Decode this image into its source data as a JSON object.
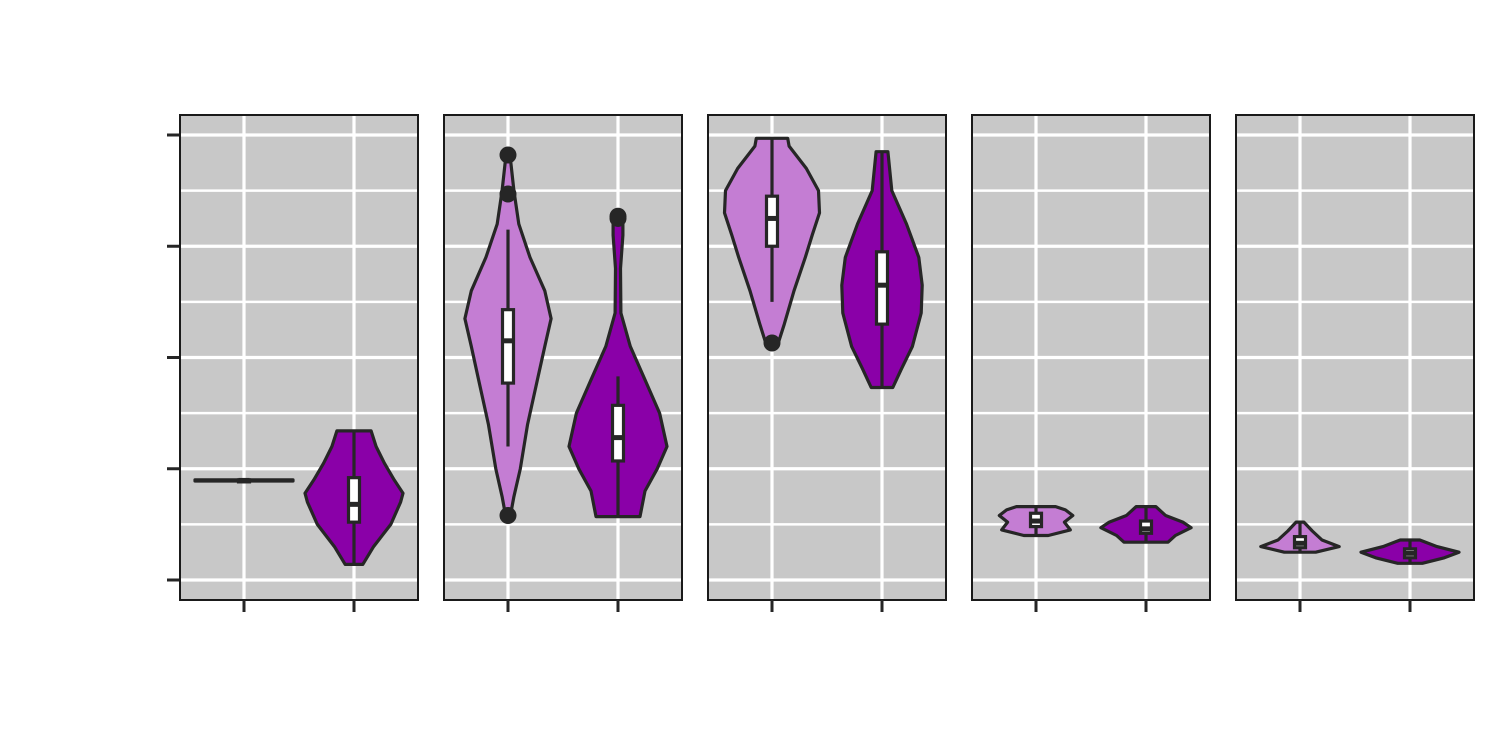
{
  "chart_data": {
    "type": "violin",
    "facets": 5,
    "groups_per_facet": 2,
    "ylim": [
      -0.2,
      4.1
    ],
    "y_ticks": [
      0,
      1,
      2,
      3,
      4
    ],
    "grid": true,
    "colors": {
      "light": "#C47DD3",
      "dark": "#8A00A8",
      "panel": "#C8C8C8"
    },
    "panels": [
      {
        "violins": [
          {
            "fill": "light",
            "ymin": 0.89,
            "ymax": 0.9,
            "dens": [
              [
                0.89,
                1
              ],
              [
                0.895,
                1
              ],
              [
                0.9,
                1
              ]
            ],
            "box": {
              "q1": 0.89,
              "median": 0.895,
              "q3": 0.9,
              "wlo": 0.89,
              "whi": 0.9
            },
            "outliers": []
          },
          {
            "fill": "dark",
            "ymin": 0.14,
            "ymax": 1.34,
            "dens": [
              [
                0.14,
                0.18
              ],
              [
                0.3,
                0.4
              ],
              [
                0.5,
                0.75
              ],
              [
                0.7,
                0.95
              ],
              [
                0.78,
                1.0
              ],
              [
                0.9,
                0.82
              ],
              [
                1.05,
                0.62
              ],
              [
                1.2,
                0.45
              ],
              [
                1.34,
                0.35
              ]
            ],
            "box": {
              "q1": 0.52,
              "median": 0.68,
              "q3": 0.92,
              "wlo": 0.14,
              "whi": 1.34
            },
            "outliers": []
          }
        ]
      },
      {
        "violins": [
          {
            "fill": "light",
            "ymin": 0.58,
            "ymax": 3.82,
            "dens": [
              [
                0.58,
                0.05
              ],
              [
                0.75,
                0.12
              ],
              [
                1.0,
                0.25
              ],
              [
                1.4,
                0.4
              ],
              [
                1.8,
                0.6
              ],
              [
                2.1,
                0.75
              ],
              [
                2.35,
                0.88
              ],
              [
                2.6,
                0.75
              ],
              [
                2.9,
                0.45
              ],
              [
                3.2,
                0.22
              ],
              [
                3.5,
                0.12
              ],
              [
                3.82,
                0.04
              ]
            ],
            "box": {
              "q1": 1.77,
              "median": 2.15,
              "q3": 2.43,
              "wlo": 1.2,
              "whi": 3.15
            },
            "outliers": [
              0.58,
              3.47,
              3.82
            ]
          },
          {
            "fill": "dark",
            "ymin": 0.57,
            "ymax": 3.27,
            "dens": [
              [
                0.57,
                0.45
              ],
              [
                0.8,
                0.55
              ],
              [
                1.0,
                0.8
              ],
              [
                1.2,
                1.0
              ],
              [
                1.5,
                0.85
              ],
              [
                1.8,
                0.55
              ],
              [
                2.1,
                0.25
              ],
              [
                2.4,
                0.06
              ],
              [
                2.8,
                0.05
              ],
              [
                3.1,
                0.1
              ],
              [
                3.27,
                0.1
              ]
            ],
            "box": {
              "q1": 1.07,
              "median": 1.28,
              "q3": 1.57,
              "wlo": 0.57,
              "whi": 1.83
            },
            "outliers": [
              3.25,
              3.27
            ]
          }
        ]
      },
      {
        "violins": [
          {
            "fill": "light",
            "ymin": 2.12,
            "ymax": 3.97,
            "dens": [
              [
                2.12,
                0.12
              ],
              [
                2.3,
                0.25
              ],
              [
                2.6,
                0.45
              ],
              [
                2.9,
                0.68
              ],
              [
                3.1,
                0.82
              ],
              [
                3.3,
                0.97
              ],
              [
                3.5,
                0.95
              ],
              [
                3.7,
                0.7
              ],
              [
                3.9,
                0.35
              ],
              [
                3.97,
                0.32
              ]
            ],
            "box": {
              "q1": 3.0,
              "median": 3.25,
              "q3": 3.45,
              "wlo": 2.5,
              "whi": 3.97
            },
            "outliers": [
              2.13
            ]
          },
          {
            "fill": "dark",
            "ymin": 1.73,
            "ymax": 3.85,
            "dens": [
              [
                1.73,
                0.22
              ],
              [
                1.9,
                0.4
              ],
              [
                2.1,
                0.62
              ],
              [
                2.4,
                0.8
              ],
              [
                2.65,
                0.82
              ],
              [
                2.9,
                0.75
              ],
              [
                3.2,
                0.5
              ],
              [
                3.5,
                0.2
              ],
              [
                3.85,
                0.12
              ]
            ],
            "box": {
              "q1": 2.3,
              "median": 2.65,
              "q3": 2.95,
              "wlo": 1.73,
              "whi": 3.85
            },
            "outliers": []
          }
        ]
      },
      {
        "violins": [
          {
            "fill": "light",
            "ymin": 0.4,
            "ymax": 0.66,
            "dens": [
              [
                0.4,
                0.25
              ],
              [
                0.45,
                0.7
              ],
              [
                0.52,
                0.58
              ],
              [
                0.58,
                0.75
              ],
              [
                0.63,
                0.6
              ],
              [
                0.66,
                0.4
              ]
            ],
            "box": {
              "q1": 0.48,
              "median": 0.53,
              "q3": 0.6,
              "wlo": 0.4,
              "whi": 0.66
            },
            "outliers": []
          },
          {
            "fill": "dark",
            "ymin": 0.34,
            "ymax": 0.66,
            "dens": [
              [
                0.34,
                0.45
              ],
              [
                0.4,
                0.6
              ],
              [
                0.47,
                0.92
              ],
              [
                0.52,
                0.75
              ],
              [
                0.58,
                0.4
              ],
              [
                0.66,
                0.2
              ]
            ],
            "box": {
              "q1": 0.42,
              "median": 0.46,
              "q3": 0.53,
              "wlo": 0.34,
              "whi": 0.66
            },
            "outliers": []
          }
        ]
      },
      {
        "violins": [
          {
            "fill": "light",
            "ymin": 0.25,
            "ymax": 0.52,
            "dens": [
              [
                0.25,
                0.32
              ],
              [
                0.3,
                0.8
              ],
              [
                0.36,
                0.45
              ],
              [
                0.44,
                0.25
              ],
              [
                0.52,
                0.08
              ]
            ],
            "box": {
              "q1": 0.29,
              "median": 0.33,
              "q3": 0.39,
              "wlo": 0.25,
              "whi": 0.52
            },
            "outliers": []
          },
          {
            "fill": "dark",
            "ymin": 0.15,
            "ymax": 0.36,
            "dens": [
              [
                0.15,
                0.25
              ],
              [
                0.2,
                0.7
              ],
              [
                0.25,
                1.0
              ],
              [
                0.3,
                0.55
              ],
              [
                0.36,
                0.2
              ]
            ],
            "box": {
              "q1": 0.2,
              "median": 0.24,
              "q3": 0.28,
              "wlo": 0.15,
              "whi": 0.36
            },
            "outliers": []
          }
        ]
      }
    ]
  }
}
